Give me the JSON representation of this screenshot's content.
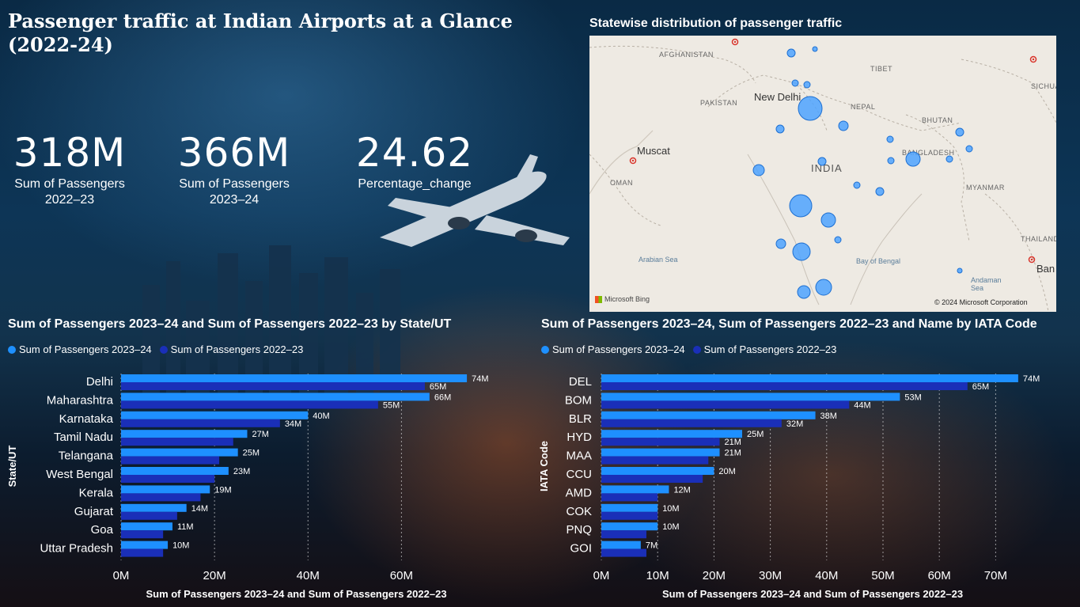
{
  "title": "Passenger traffic at Indian Airports at a Glance (2022-24)",
  "kpis": [
    {
      "value": "318M",
      "label_line1": "Sum of Passengers",
      "label_line2": "2022–23"
    },
    {
      "value": "366M",
      "label_line1": "Sum of Passengers",
      "label_line2": "2023–24"
    },
    {
      "value": "24.62",
      "label_line1": "Percentage_change",
      "label_line2": ""
    }
  ],
  "map": {
    "title": "Statewise distribution of passenger traffic",
    "countries": [
      "AFGHANISTAN",
      "TIBET",
      "PAKISTAN",
      "NEPAL",
      "BHUTAN",
      "BANGLADESH",
      "INDIA",
      "MYANMAR",
      "OMAN",
      "THAILAND",
      "SICHUA"
    ],
    "cities": [
      "New Delhi",
      "Muscat",
      "Ban"
    ],
    "seas": [
      "Arabian Sea",
      "Bay of Bengal",
      "Andaman Sea"
    ],
    "attribution": "© 2024 Microsoft Corporation",
    "provider": "Microsoft Bing"
  },
  "colors": {
    "series_2023_24": "#1e90ff",
    "series_2022_23": "#1a2fb8",
    "map_bubble": "#4da3ff",
    "map_bubble_border": "#1d6fd1"
  },
  "chart_data": [
    {
      "type": "bar",
      "orientation": "horizontal",
      "title": "Sum of Passengers 2023–24 and Sum of Passengers 2022–23 by State/UT",
      "xlabel": "Sum of Passengers 2023–24 and Sum of Passengers 2022–23",
      "ylabel": "State/UT",
      "xlim": [
        0,
        75
      ],
      "xticks": [
        "0M",
        "20M",
        "40M",
        "60M"
      ],
      "xtick_values": [
        0,
        20,
        40,
        60
      ],
      "grid": true,
      "legend_position": "top-left",
      "categories": [
        "Delhi",
        "Maharashtra",
        "Karnataka",
        "Tamil Nadu",
        "Telangana",
        "West Bengal",
        "Kerala",
        "Gujarat",
        "Goa",
        "Uttar Pradesh"
      ],
      "series": [
        {
          "name": "Sum of Passengers  2023–24",
          "values": [
            74,
            66,
            40,
            27,
            25,
            23,
            19,
            14,
            11,
            10
          ],
          "labels": [
            "74M",
            "66M",
            "40M",
            "27M",
            "25M",
            "23M",
            "19M",
            "14M",
            "11M",
            "10M"
          ]
        },
        {
          "name": "Sum of Passengers  2022–23",
          "values": [
            65,
            55,
            34,
            24,
            21,
            20,
            17,
            12,
            9,
            9
          ],
          "labels": [
            "65M",
            "55M",
            "34M",
            "",
            "",
            "",
            "",
            "",
            "",
            ""
          ]
        }
      ]
    },
    {
      "type": "bar",
      "orientation": "horizontal",
      "title": "Sum of Passengers 2023–24, Sum of Passengers 2022–23 and Name by IATA Code",
      "xlabel": "Sum of Passengers 2023–24 and Sum of Passengers 2022–23",
      "ylabel": "IATA Code",
      "xlim": [
        0,
        75
      ],
      "xticks": [
        "0M",
        "10M",
        "20M",
        "30M",
        "40M",
        "50M",
        "60M",
        "70M"
      ],
      "xtick_values": [
        0,
        10,
        20,
        30,
        40,
        50,
        60,
        70
      ],
      "grid": true,
      "legend_position": "top-left",
      "categories": [
        "DEL",
        "BOM",
        "BLR",
        "HYD",
        "MAA",
        "CCU",
        "AMD",
        "COK",
        "PNQ",
        "GOI"
      ],
      "series": [
        {
          "name": "Sum of Passengers  2023–24",
          "values": [
            74,
            53,
            38,
            25,
            21,
            20,
            12,
            10,
            10,
            7
          ],
          "labels": [
            "74M",
            "53M",
            "38M",
            "25M",
            "21M",
            "20M",
            "12M",
            "10M",
            "10M",
            "7M"
          ]
        },
        {
          "name": "Sum of Passengers  2022–23",
          "values": [
            65,
            44,
            32,
            21,
            19,
            18,
            10,
            10,
            8,
            8
          ],
          "labels": [
            "65M",
            "44M",
            "32M",
            "21M",
            "",
            "",
            "",
            "",
            "",
            ""
          ]
        }
      ]
    }
  ]
}
